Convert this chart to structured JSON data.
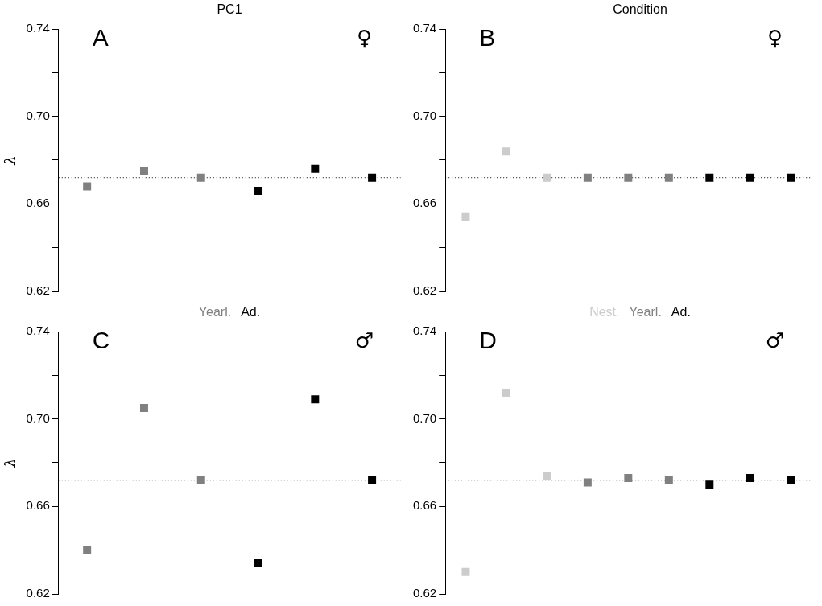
{
  "chart_data": [
    {
      "type": "scatter",
      "title": "PC1",
      "ylabel": "λ",
      "annotations": [
        "A",
        "♀"
      ],
      "categories": [
        null,
        null,
        null,
        null,
        null,
        null
      ],
      "marker": "square",
      "tick_labels": "y",
      "grid": false,
      "ylim": [
        0.62,
        0.74
      ],
      "yticks": [
        0.62,
        {
          "value": 0.64,
          "label": null
        },
        0.66,
        {
          "value": 0.68,
          "label": null
        },
        {
          "value": 0.7,
          "label": "0.70"
        },
        {
          "value": 0.72,
          "label": null
        },
        0.74
      ],
      "ref_lines": [
        {
          "axis": "y",
          "value": 0.672,
          "line_style": "dotted",
          "color": "#000000"
        }
      ],
      "series": [
        {
          "color": "#808080",
          "values": [
            0.668,
            0.675,
            null,
            null,
            null,
            null
          ]
        },
        {
          "color": "#808080",
          "values": [
            null,
            null,
            0.672,
            null,
            null,
            null
          ]
        },
        {
          "color": "#000000",
          "values": [
            null,
            null,
            null,
            0.666,
            0.676,
            null
          ]
        },
        {
          "color": "#000000",
          "values": [
            null,
            null,
            null,
            null,
            null,
            0.672
          ]
        }
      ]
    },
    {
      "type": "scatter",
      "title": "Condition",
      "annotations": [
        "B",
        "♀"
      ],
      "categories": [
        null,
        null,
        null,
        null,
        null,
        null,
        null,
        null,
        null
      ],
      "marker": "square",
      "tick_labels": "y",
      "grid": false,
      "ylim": [
        0.62,
        0.74
      ],
      "yticks": [
        0.62,
        {
          "value": 0.64,
          "label": null
        },
        0.66,
        {
          "value": 0.68,
          "label": null
        },
        {
          "value": 0.7,
          "label": "0.70"
        },
        {
          "value": 0.72,
          "label": null
        },
        0.74
      ],
      "ref_lines": [
        {
          "axis": "y",
          "value": 0.672,
          "line_style": "dotted",
          "color": "#000000"
        }
      ],
      "series": [
        {
          "color": "#cccccc",
          "values": [
            0.654,
            0.684,
            null,
            null,
            null,
            null,
            null,
            null,
            null
          ]
        },
        {
          "color": "#cccccc",
          "values": [
            null,
            null,
            0.672,
            null,
            null,
            null,
            null,
            null,
            null
          ]
        },
        {
          "color": "#808080",
          "values": [
            null,
            null,
            null,
            0.672,
            0.672,
            null,
            null,
            null,
            null
          ]
        },
        {
          "color": "#808080",
          "values": [
            null,
            null,
            null,
            null,
            null,
            0.672,
            null,
            null,
            null
          ]
        },
        {
          "color": "#000000",
          "values": [
            null,
            null,
            null,
            null,
            null,
            null,
            0.672,
            0.672,
            null
          ]
        },
        {
          "color": "#000000",
          "values": [
            null,
            null,
            null,
            null,
            null,
            null,
            null,
            null,
            0.672
          ]
        }
      ]
    },
    {
      "type": "scatter",
      "ylabel": "λ",
      "annotations": [
        "C",
        "♂"
      ],
      "legend": "top",
      "categories": [
        null,
        null,
        null,
        null,
        null,
        null
      ],
      "marker": "square",
      "tick_labels": "y",
      "grid": false,
      "ylim": [
        0.62,
        0.74
      ],
      "yticks": [
        0.62,
        {
          "value": 0.64,
          "label": null
        },
        0.66,
        {
          "value": 0.68,
          "label": null
        },
        {
          "value": 0.7,
          "label": "0.70"
        },
        {
          "value": 0.72,
          "label": null
        },
        0.74
      ],
      "ref_lines": [
        {
          "axis": "y",
          "value": 0.672,
          "line_style": "dotted",
          "color": "#000000"
        }
      ],
      "series": [
        {
          "name": "Yearl.",
          "color": "#808080",
          "values": [
            0.64,
            0.705,
            null,
            null,
            null,
            null
          ]
        },
        {
          "color": "#808080",
          "values": [
            null,
            null,
            0.672,
            null,
            null,
            null
          ]
        },
        {
          "name": "Ad.",
          "color": "#000000",
          "values": [
            null,
            null,
            null,
            0.634,
            0.709,
            null
          ]
        },
        {
          "color": "#000000",
          "values": [
            null,
            null,
            null,
            null,
            null,
            0.672
          ]
        }
      ]
    },
    {
      "type": "scatter",
      "annotations": [
        "D",
        "♂"
      ],
      "legend": "top",
      "categories": [
        null,
        null,
        null,
        null,
        null,
        null,
        null,
        null,
        null
      ],
      "marker": "square",
      "tick_labels": "y",
      "grid": false,
      "ylim": [
        0.62,
        0.74
      ],
      "yticks": [
        0.62,
        {
          "value": 0.64,
          "label": null
        },
        0.66,
        {
          "value": 0.68,
          "label": null
        },
        {
          "value": 0.7,
          "label": "0.70"
        },
        {
          "value": 0.72,
          "label": null
        },
        0.74
      ],
      "ref_lines": [
        {
          "axis": "y",
          "value": 0.672,
          "line_style": "dotted",
          "color": "#000000"
        }
      ],
      "series": [
        {
          "name": "Nest.",
          "color": "#cccccc",
          "values": [
            0.63,
            0.712,
            null,
            null,
            null,
            null,
            null,
            null,
            null
          ]
        },
        {
          "color": "#cccccc",
          "values": [
            null,
            null,
            0.674,
            null,
            null,
            null,
            null,
            null,
            null
          ]
        },
        {
          "name": "Yearl.",
          "color": "#808080",
          "values": [
            null,
            null,
            null,
            0.671,
            0.673,
            null,
            null,
            null,
            null
          ]
        },
        {
          "color": "#808080",
          "values": [
            null,
            null,
            null,
            null,
            null,
            0.672,
            null,
            null,
            null
          ]
        },
        {
          "name": "Ad.",
          "color": "#000000",
          "values": [
            null,
            null,
            null,
            null,
            null,
            null,
            0.67,
            0.673,
            null
          ]
        },
        {
          "color": "#000000",
          "values": [
            null,
            null,
            null,
            null,
            null,
            null,
            null,
            null,
            0.672
          ]
        }
      ]
    }
  ]
}
